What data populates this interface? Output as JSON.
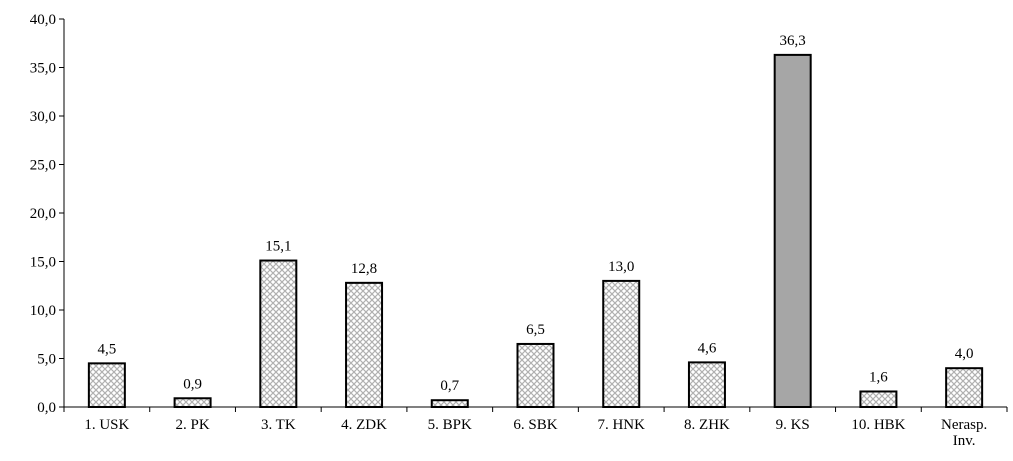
{
  "chart_data": {
    "type": "bar",
    "title": "",
    "xlabel": "",
    "ylabel": "",
    "ylim": [
      0,
      40
    ],
    "yticks": [
      "0,0",
      "5,0",
      "10,0",
      "15,0",
      "20,0",
      "25,0",
      "30,0",
      "35,0",
      "40,0"
    ],
    "grid": false,
    "legend": "none",
    "categories": [
      [
        "1. USK"
      ],
      [
        "2. PK"
      ],
      [
        "3. TK"
      ],
      [
        "4. ZDK"
      ],
      [
        "5. BPK"
      ],
      [
        "6. SBK"
      ],
      [
        "7. HNK"
      ],
      [
        "8. ZHK"
      ],
      [
        "9. KS"
      ],
      [
        "10. HBK"
      ],
      [
        "Nerasp.",
        "Inv."
      ]
    ],
    "values": [
      4.5,
      0.9,
      15.1,
      12.8,
      0.7,
      6.5,
      13.0,
      4.6,
      36.3,
      1.6,
      4.0
    ],
    "data_labels": [
      "4,5",
      "0,9",
      "15,1",
      "12,8",
      "0,7",
      "6,5",
      "13,0",
      "4,6",
      "36,3",
      "1,6",
      "4,0"
    ],
    "highlight_index": 8,
    "colors": {
      "pattern_fill": "#c8c8c8",
      "pattern_background": "#ffffff",
      "highlight_fill": "#a6a6a6",
      "outline": "#000000"
    }
  }
}
